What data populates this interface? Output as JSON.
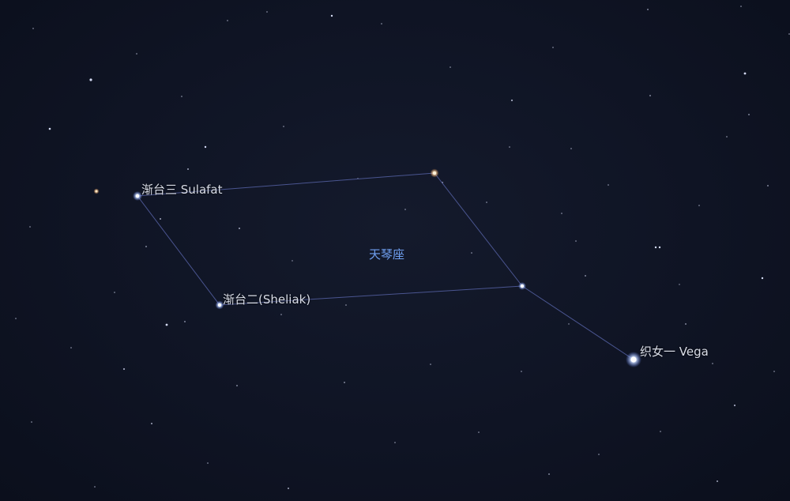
{
  "constellation": {
    "name": "天琴座"
  },
  "stars": {
    "vega": {
      "label": "织女一 Vega"
    },
    "sulafat": {
      "label": "渐台三 Sulafat"
    },
    "sheliak": {
      "label": "渐台二(Sheliak)"
    }
  },
  "colors": {
    "constellation_line": "#4a5590",
    "constellation_label": "#6f9ff0",
    "star_label": "#d9dde8"
  }
}
